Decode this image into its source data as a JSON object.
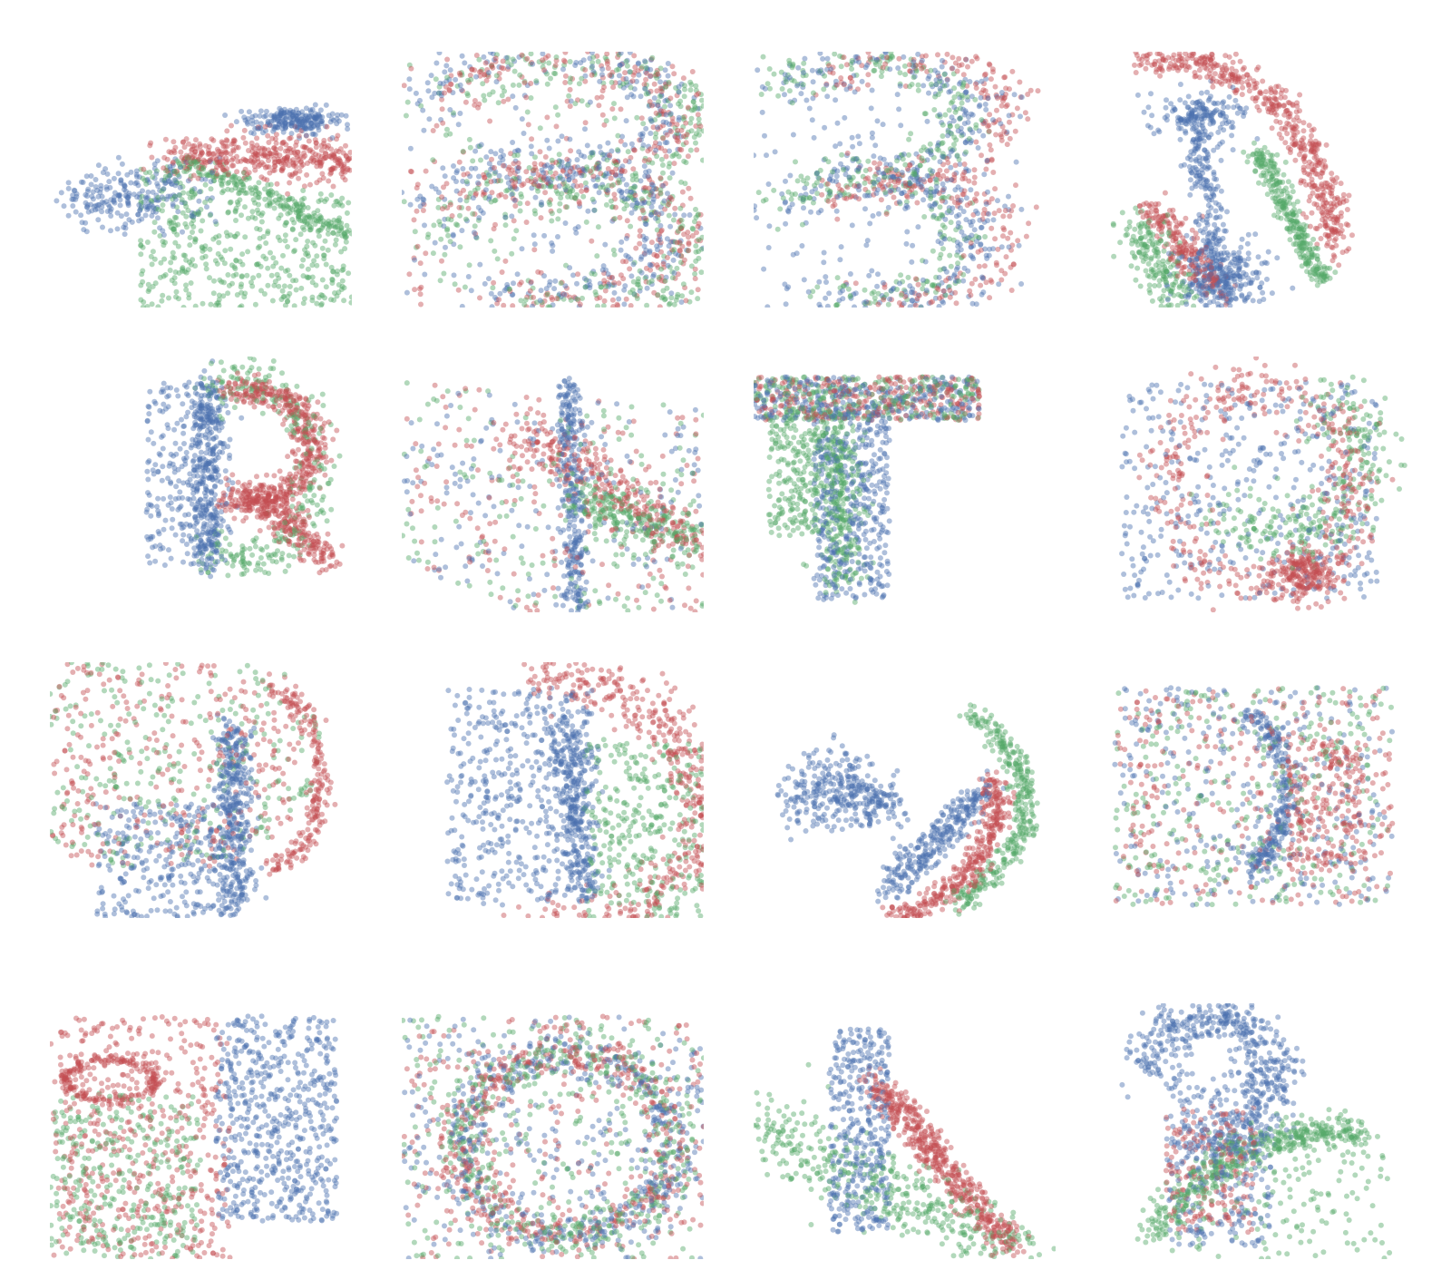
{
  "palette": {
    "series_a": "#4c72b0",
    "series_b": "#c44e52",
    "series_c": "#55a868",
    "background": "#ffffff"
  },
  "grid": {
    "rows": 4,
    "cols": 4
  },
  "panels": [
    {
      "id": "r1c1",
      "shape": "tilted-wedge"
    },
    {
      "id": "r1c2",
      "shape": "letter-S-dense"
    },
    {
      "id": "r1c3",
      "shape": "letter-S"
    },
    {
      "id": "r1c4",
      "shape": "curved-strokes"
    },
    {
      "id": "r2c1",
      "shape": "letter-R"
    },
    {
      "id": "r2c2",
      "shape": "diffuse-cloud"
    },
    {
      "id": "r2c3",
      "shape": "letter-T"
    },
    {
      "id": "r2c4",
      "shape": "tangled-loops"
    },
    {
      "id": "r3c1",
      "shape": "head-profile"
    },
    {
      "id": "r3c2",
      "shape": "letter-D"
    },
    {
      "id": "r3c3",
      "shape": "arc-strands"
    },
    {
      "id": "r3c4",
      "shape": "square-cloud"
    },
    {
      "id": "r4c1",
      "shape": "letter-H"
    },
    {
      "id": "r4c2",
      "shape": "letter-O-dense"
    },
    {
      "id": "r4c3",
      "shape": "diagonal-strand"
    },
    {
      "id": "r4c4",
      "shape": "mushroom"
    }
  ]
}
